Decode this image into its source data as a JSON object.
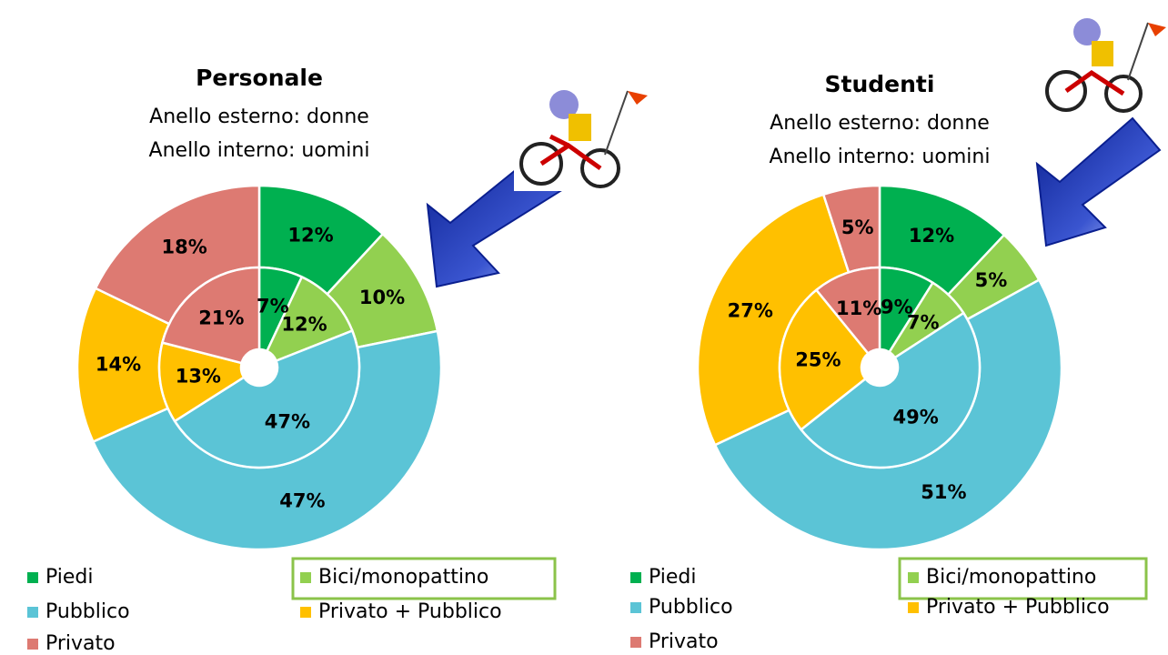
{
  "chart_data": [
    {
      "type": "donut",
      "title": "Personale",
      "subtitle": [
        "Anello esterno: donne",
        "Anello interno: uomini"
      ],
      "categories": [
        "Piedi",
        "Bici/monopattino",
        "Pubblico",
        "Privato + Pubblico",
        "Privato"
      ],
      "colors": [
        "#00b050",
        "#92d050",
        "#5bc4d6",
        "#ffc000",
        "#dd7a72"
      ],
      "series": [
        {
          "values": [
            12,
            10,
            47,
            14,
            18
          ],
          "value_labels": [
            "12%",
            "10%",
            "47%",
            "14%",
            "18%"
          ]
        },
        {
          "values": [
            7,
            12,
            47,
            13,
            21
          ],
          "value_labels": [
            "7%",
            "12%",
            "47%",
            "13%",
            "21%"
          ]
        }
      ]
    },
    {
      "type": "donut",
      "title": "Studenti",
      "subtitle": [
        "Anello esterno: donne",
        "Anello interno: uomini"
      ],
      "categories": [
        "Piedi",
        "Bici/monopattino",
        "Pubblico",
        "Privato + Pubblico",
        "Privato"
      ],
      "colors": [
        "#00b050",
        "#92d050",
        "#5bc4d6",
        "#ffc000",
        "#dd7a72"
      ],
      "series": [
        {
          "values": [
            12,
            5,
            51,
            27,
            5
          ],
          "value_labels": [
            "12%",
            "5%",
            "51%",
            "27%",
            "5%"
          ]
        },
        {
          "values": [
            9,
            7,
            49,
            25,
            11
          ],
          "value_labels": [
            "9%",
            "7%",
            "49%",
            "25%",
            "11%"
          ]
        }
      ]
    }
  ]
}
